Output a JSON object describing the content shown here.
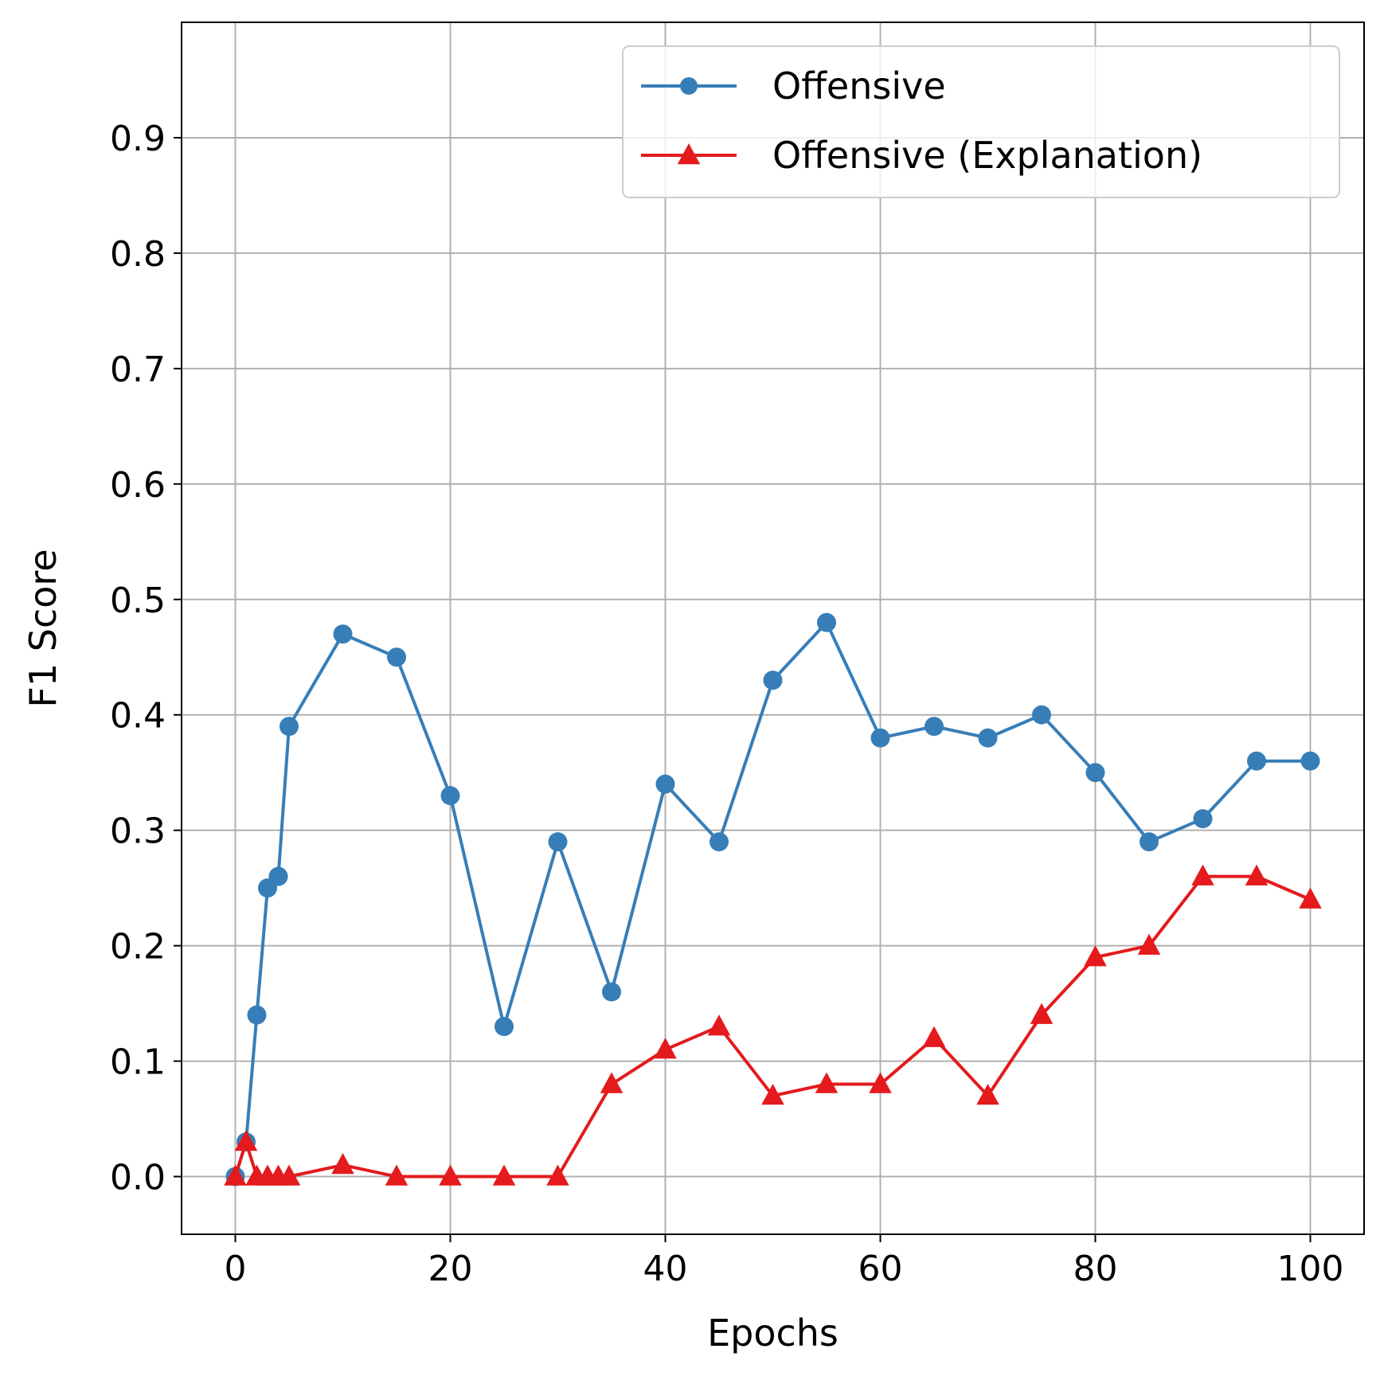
{
  "chart_data": {
    "type": "line",
    "title": "",
    "xlabel": "Epochs",
    "ylabel": "F1 Score",
    "xlim": [
      -5,
      105
    ],
    "ylim": [
      -0.05,
      1.0
    ],
    "xticks": [
      0,
      20,
      40,
      60,
      80,
      100
    ],
    "xtick_labels": [
      "0",
      "20",
      "40",
      "60",
      "80",
      "100"
    ],
    "yticks": [
      0.0,
      0.1,
      0.2,
      0.3,
      0.4,
      0.5,
      0.6,
      0.7,
      0.8,
      0.9
    ],
    "ytick_labels": [
      "0.0",
      "0.1",
      "0.2",
      "0.3",
      "0.4",
      "0.5",
      "0.6",
      "0.7",
      "0.8",
      "0.9"
    ],
    "grid": true,
    "legend_position": "top-right",
    "x": [
      0,
      1,
      2,
      3,
      4,
      5,
      10,
      15,
      20,
      25,
      30,
      35,
      40,
      45,
      50,
      55,
      60,
      65,
      70,
      75,
      80,
      85,
      90,
      95,
      100
    ],
    "series": [
      {
        "name": "Offensive",
        "color": "#377eb8",
        "marker": "circle",
        "values": [
          0.0,
          0.03,
          0.14,
          0.25,
          0.26,
          0.39,
          0.47,
          0.45,
          0.33,
          0.13,
          0.29,
          0.16,
          0.34,
          0.29,
          0.43,
          0.48,
          0.38,
          0.39,
          0.38,
          0.4,
          0.35,
          0.29,
          0.31,
          0.36,
          0.36
        ]
      },
      {
        "name": "Offensive (Explanation)",
        "color": "#e41a1c",
        "marker": "triangle",
        "values": [
          0.0,
          0.03,
          0.0,
          0.0,
          0.0,
          0.0,
          0.01,
          0.0,
          0.0,
          0.0,
          0.0,
          0.08,
          0.11,
          0.13,
          0.07,
          0.08,
          0.08,
          0.12,
          0.07,
          0.14,
          0.19,
          0.2,
          0.26,
          0.26,
          0.24
        ]
      }
    ]
  }
}
